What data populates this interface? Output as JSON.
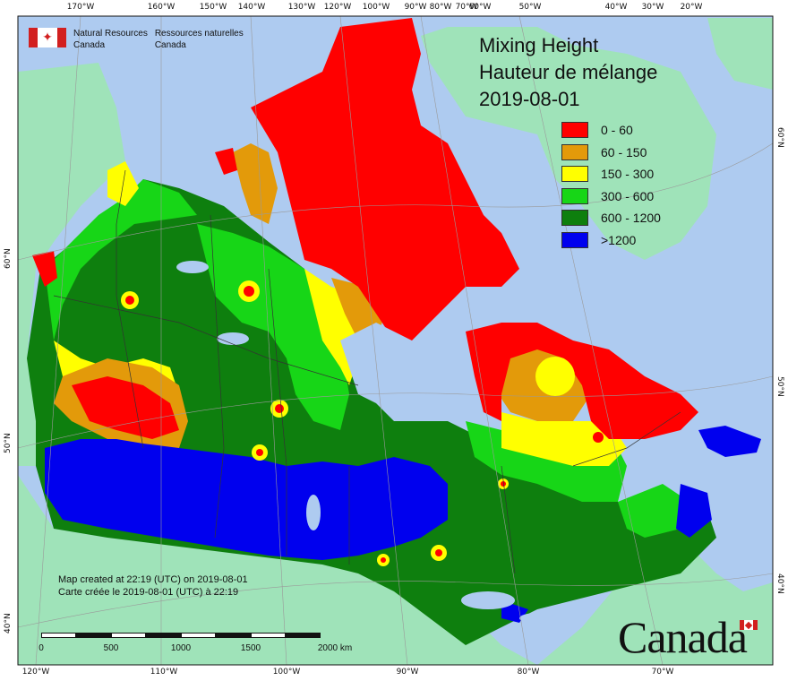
{
  "map": {
    "title_en": "Mixing Height",
    "title_fr": "Hauteur de mélange",
    "date": "2019-08-01",
    "colors": {
      "ocean": "#aecbf0",
      "foreign_land": "#9fe3b9",
      "land_default": "#0e7f0e",
      "grid": "#9a9a9a",
      "border": "#333333"
    }
  },
  "agency": {
    "name_en_line1": "Natural Resources",
    "name_en_line2": "Canada",
    "name_fr_line1": "Ressources naturelles",
    "name_fr_line2": "Canada"
  },
  "legend": [
    {
      "label": "0 - 60",
      "color": "#ff0000"
    },
    {
      "label": "60 - 150",
      "color": "#e39a0a"
    },
    {
      "label": "150 - 300",
      "color": "#ffff00"
    },
    {
      "label": "300 - 600",
      "color": "#17d617"
    },
    {
      "label": "600 - 1200",
      "color": "#0e7f0e"
    },
    {
      "label": ">1200",
      "color": "#0000ee"
    }
  ],
  "credit": {
    "line_en": "Map created at 22:19 (UTC) on 2019-08-01",
    "line_fr": "Carte créée le 2019-08-01 (UTC) à 22:19"
  },
  "scale": {
    "labels": [
      "0",
      "500",
      "1000",
      "1500",
      "2000 km"
    ]
  },
  "graticule": {
    "top": [
      "170°W",
      "160°W",
      "150°W",
      "140°W",
      "130°W",
      "120°W",
      "100°W",
      "90°W",
      "80°W",
      "70°W",
      "60°W",
      "50°W",
      "40°W",
      "30°W",
      "20°W"
    ],
    "bottom": [
      "120°W",
      "110°W",
      "100°W",
      "90°W",
      "80°W",
      "70°W"
    ],
    "left": [
      "60°N",
      "50°N",
      "40°N"
    ],
    "right": [
      "60°N",
      "50°N",
      "40°N"
    ]
  },
  "wordmark": "Canada"
}
